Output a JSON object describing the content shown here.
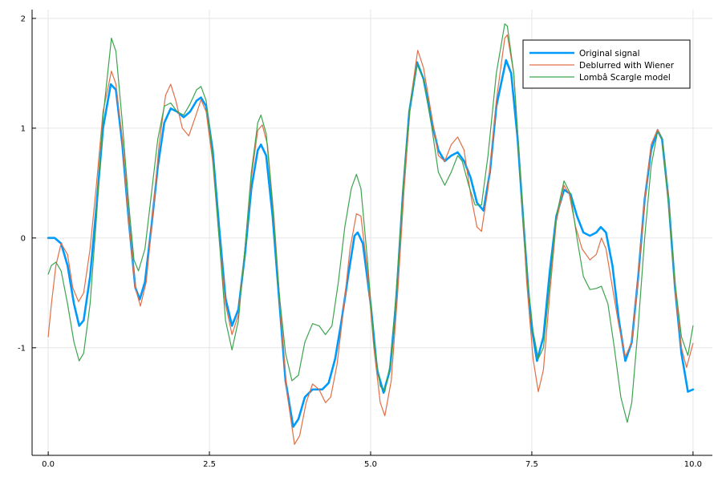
{
  "chart_data": {
    "type": "line",
    "xlim": [
      -0.25,
      10.3
    ],
    "ylim": [
      -1.98,
      2.08
    ],
    "grid": true,
    "legend_position": "top-right",
    "x_ticks": [
      {
        "value": 0,
        "label": "0.0"
      },
      {
        "value": 2.5,
        "label": "2.5"
      },
      {
        "value": 5,
        "label": "5.0"
      },
      {
        "value": 7.5,
        "label": "7.5"
      },
      {
        "value": 10,
        "label": "10.0"
      }
    ],
    "y_ticks": [
      {
        "value": -1,
        "label": "-1"
      },
      {
        "value": 0,
        "label": "0"
      },
      {
        "value": 1,
        "label": "1"
      },
      {
        "value": 2,
        "label": "2"
      }
    ],
    "series": [
      {
        "name": "Original signal",
        "color": "#009AFA",
        "points": [
          [
            0,
            0
          ],
          [
            0.1,
            0
          ],
          [
            0.2,
            -0.05
          ],
          [
            0.3,
            -0.25
          ],
          [
            0.4,
            -0.6
          ],
          [
            0.48,
            -0.8
          ],
          [
            0.55,
            -0.75
          ],
          [
            0.65,
            -0.35
          ],
          [
            0.75,
            0.3
          ],
          [
            0.85,
            1.0
          ],
          [
            0.97,
            1.4
          ],
          [
            1.05,
            1.35
          ],
          [
            1.15,
            0.85
          ],
          [
            1.25,
            0.15
          ],
          [
            1.35,
            -0.45
          ],
          [
            1.42,
            -0.56
          ],
          [
            1.5,
            -0.4
          ],
          [
            1.6,
            0.1
          ],
          [
            1.7,
            0.65
          ],
          [
            1.8,
            1.05
          ],
          [
            1.9,
            1.18
          ],
          [
            2.0,
            1.15
          ],
          [
            2.1,
            1.1
          ],
          [
            2.2,
            1.15
          ],
          [
            2.3,
            1.25
          ],
          [
            2.37,
            1.28
          ],
          [
            2.45,
            1.2
          ],
          [
            2.55,
            0.8
          ],
          [
            2.65,
            0.1
          ],
          [
            2.75,
            -0.55
          ],
          [
            2.85,
            -0.8
          ],
          [
            2.95,
            -0.65
          ],
          [
            3.05,
            -0.15
          ],
          [
            3.15,
            0.45
          ],
          [
            3.25,
            0.8
          ],
          [
            3.3,
            0.85
          ],
          [
            3.38,
            0.75
          ],
          [
            3.48,
            0.2
          ],
          [
            3.58,
            -0.55
          ],
          [
            3.68,
            -1.3
          ],
          [
            3.8,
            -1.72
          ],
          [
            3.88,
            -1.65
          ],
          [
            3.98,
            -1.45
          ],
          [
            4.1,
            -1.38
          ],
          [
            4.25,
            -1.38
          ],
          [
            4.35,
            -1.32
          ],
          [
            4.45,
            -1.1
          ],
          [
            4.55,
            -0.75
          ],
          [
            4.65,
            -0.35
          ],
          [
            4.75,
            0.02
          ],
          [
            4.8,
            0.05
          ],
          [
            4.88,
            -0.05
          ],
          [
            5.0,
            -0.6
          ],
          [
            5.1,
            -1.2
          ],
          [
            5.2,
            -1.41
          ],
          [
            5.3,
            -1.2
          ],
          [
            5.4,
            -0.55
          ],
          [
            5.5,
            0.4
          ],
          [
            5.6,
            1.15
          ],
          [
            5.72,
            1.6
          ],
          [
            5.82,
            1.45
          ],
          [
            5.95,
            1.05
          ],
          [
            6.05,
            0.8
          ],
          [
            6.15,
            0.7
          ],
          [
            6.25,
            0.75
          ],
          [
            6.35,
            0.78
          ],
          [
            6.45,
            0.7
          ],
          [
            6.55,
            0.55
          ],
          [
            6.65,
            0.32
          ],
          [
            6.75,
            0.25
          ],
          [
            6.85,
            0.6
          ],
          [
            6.95,
            1.2
          ],
          [
            7.1,
            1.62
          ],
          [
            7.18,
            1.5
          ],
          [
            7.28,
            0.9
          ],
          [
            7.38,
            0.05
          ],
          [
            7.48,
            -0.75
          ],
          [
            7.58,
            -1.12
          ],
          [
            7.68,
            -0.9
          ],
          [
            7.78,
            -0.3
          ],
          [
            7.88,
            0.2
          ],
          [
            8.0,
            0.44
          ],
          [
            8.1,
            0.4
          ],
          [
            8.2,
            0.2
          ],
          [
            8.3,
            0.05
          ],
          [
            8.4,
            0.02
          ],
          [
            8.5,
            0.05
          ],
          [
            8.57,
            0.1
          ],
          [
            8.65,
            0.05
          ],
          [
            8.75,
            -0.25
          ],
          [
            8.85,
            -0.75
          ],
          [
            8.95,
            -1.12
          ],
          [
            9.05,
            -0.95
          ],
          [
            9.15,
            -0.35
          ],
          [
            9.25,
            0.35
          ],
          [
            9.35,
            0.8
          ],
          [
            9.45,
            0.98
          ],
          [
            9.52,
            0.9
          ],
          [
            9.62,
            0.35
          ],
          [
            9.72,
            -0.45
          ],
          [
            9.82,
            -1.05
          ],
          [
            9.92,
            -1.4
          ],
          [
            10.0,
            -1.38
          ]
        ]
      },
      {
        "name": "Deblurred with Wiener",
        "color": "#E26F46",
        "points": [
          [
            0,
            -0.9
          ],
          [
            0.05,
            -0.6
          ],
          [
            0.12,
            -0.25
          ],
          [
            0.2,
            -0.05
          ],
          [
            0.3,
            -0.15
          ],
          [
            0.38,
            -0.45
          ],
          [
            0.47,
            -0.58
          ],
          [
            0.55,
            -0.5
          ],
          [
            0.65,
            -0.1
          ],
          [
            0.75,
            0.5
          ],
          [
            0.85,
            1.15
          ],
          [
            0.98,
            1.52
          ],
          [
            1.05,
            1.4
          ],
          [
            1.15,
            0.9
          ],
          [
            1.25,
            0.15
          ],
          [
            1.35,
            -0.45
          ],
          [
            1.43,
            -0.62
          ],
          [
            1.52,
            -0.4
          ],
          [
            1.62,
            0.2
          ],
          [
            1.72,
            0.85
          ],
          [
            1.82,
            1.3
          ],
          [
            1.9,
            1.4
          ],
          [
            1.98,
            1.25
          ],
          [
            2.08,
            1.0
          ],
          [
            2.18,
            0.93
          ],
          [
            2.28,
            1.1
          ],
          [
            2.37,
            1.26
          ],
          [
            2.45,
            1.15
          ],
          [
            2.55,
            0.7
          ],
          [
            2.65,
            0.0
          ],
          [
            2.75,
            -0.6
          ],
          [
            2.85,
            -0.88
          ],
          [
            2.95,
            -0.7
          ],
          [
            3.05,
            -0.1
          ],
          [
            3.15,
            0.55
          ],
          [
            3.25,
            0.98
          ],
          [
            3.32,
            1.03
          ],
          [
            3.4,
            0.85
          ],
          [
            3.5,
            0.2
          ],
          [
            3.6,
            -0.65
          ],
          [
            3.7,
            -1.4
          ],
          [
            3.82,
            -1.88
          ],
          [
            3.9,
            -1.8
          ],
          [
            4.0,
            -1.5
          ],
          [
            4.1,
            -1.33
          ],
          [
            4.2,
            -1.38
          ],
          [
            4.3,
            -1.5
          ],
          [
            4.38,
            -1.45
          ],
          [
            4.48,
            -1.15
          ],
          [
            4.58,
            -0.65
          ],
          [
            4.68,
            -0.1
          ],
          [
            4.78,
            0.22
          ],
          [
            4.85,
            0.2
          ],
          [
            4.95,
            -0.3
          ],
          [
            5.05,
            -1.0
          ],
          [
            5.15,
            -1.5
          ],
          [
            5.22,
            -1.62
          ],
          [
            5.32,
            -1.3
          ],
          [
            5.42,
            -0.5
          ],
          [
            5.52,
            0.45
          ],
          [
            5.62,
            1.25
          ],
          [
            5.73,
            1.71
          ],
          [
            5.82,
            1.55
          ],
          [
            5.95,
            1.1
          ],
          [
            6.05,
            0.75
          ],
          [
            6.15,
            0.7
          ],
          [
            6.25,
            0.85
          ],
          [
            6.35,
            0.92
          ],
          [
            6.45,
            0.8
          ],
          [
            6.55,
            0.4
          ],
          [
            6.65,
            0.1
          ],
          [
            6.72,
            0.06
          ],
          [
            6.82,
            0.45
          ],
          [
            6.95,
            1.25
          ],
          [
            7.08,
            1.82
          ],
          [
            7.12,
            1.85
          ],
          [
            7.22,
            1.5
          ],
          [
            7.32,
            0.6
          ],
          [
            7.42,
            -0.4
          ],
          [
            7.52,
            -1.1
          ],
          [
            7.6,
            -1.4
          ],
          [
            7.68,
            -1.2
          ],
          [
            7.78,
            -0.5
          ],
          [
            7.88,
            0.15
          ],
          [
            8.0,
            0.48
          ],
          [
            8.08,
            0.4
          ],
          [
            8.18,
            0.1
          ],
          [
            8.28,
            -0.1
          ],
          [
            8.4,
            -0.2
          ],
          [
            8.5,
            -0.15
          ],
          [
            8.58,
            0.0
          ],
          [
            8.65,
            -0.1
          ],
          [
            8.75,
            -0.45
          ],
          [
            8.85,
            -0.8
          ],
          [
            8.95,
            -1.08
          ],
          [
            9.05,
            -0.95
          ],
          [
            9.15,
            -0.35
          ],
          [
            9.25,
            0.35
          ],
          [
            9.35,
            0.85
          ],
          [
            9.45,
            0.99
          ],
          [
            9.52,
            0.9
          ],
          [
            9.62,
            0.35
          ],
          [
            9.72,
            -0.45
          ],
          [
            9.82,
            -1.0
          ],
          [
            9.9,
            -1.18
          ],
          [
            10.0,
            -0.96
          ]
        ]
      },
      {
        "name": "Lombâ  Scargle model",
        "color": "#3DA44E",
        "points": [
          [
            0,
            -0.33
          ],
          [
            0.05,
            -0.25
          ],
          [
            0.12,
            -0.22
          ],
          [
            0.2,
            -0.3
          ],
          [
            0.3,
            -0.6
          ],
          [
            0.4,
            -0.95
          ],
          [
            0.48,
            -1.12
          ],
          [
            0.55,
            -1.05
          ],
          [
            0.65,
            -0.6
          ],
          [
            0.75,
            0.2
          ],
          [
            0.85,
            1.1
          ],
          [
            0.98,
            1.82
          ],
          [
            1.05,
            1.7
          ],
          [
            1.15,
            1.05
          ],
          [
            1.25,
            0.3
          ],
          [
            1.33,
            -0.2
          ],
          [
            1.4,
            -0.3
          ],
          [
            1.5,
            -0.1
          ],
          [
            1.6,
            0.4
          ],
          [
            1.7,
            0.9
          ],
          [
            1.8,
            1.2
          ],
          [
            1.9,
            1.23
          ],
          [
            2.0,
            1.15
          ],
          [
            2.1,
            1.12
          ],
          [
            2.2,
            1.22
          ],
          [
            2.3,
            1.35
          ],
          [
            2.37,
            1.38
          ],
          [
            2.45,
            1.25
          ],
          [
            2.55,
            0.75
          ],
          [
            2.65,
            0.0
          ],
          [
            2.75,
            -0.75
          ],
          [
            2.85,
            -1.02
          ],
          [
            2.95,
            -0.75
          ],
          [
            3.05,
            -0.1
          ],
          [
            3.15,
            0.6
          ],
          [
            3.25,
            1.05
          ],
          [
            3.3,
            1.12
          ],
          [
            3.38,
            0.95
          ],
          [
            3.48,
            0.3
          ],
          [
            3.58,
            -0.5
          ],
          [
            3.68,
            -1.05
          ],
          [
            3.78,
            -1.3
          ],
          [
            3.88,
            -1.25
          ],
          [
            3.98,
            -0.95
          ],
          [
            4.1,
            -0.78
          ],
          [
            4.2,
            -0.8
          ],
          [
            4.3,
            -0.88
          ],
          [
            4.4,
            -0.8
          ],
          [
            4.5,
            -0.4
          ],
          [
            4.6,
            0.1
          ],
          [
            4.7,
            0.45
          ],
          [
            4.78,
            0.58
          ],
          [
            4.85,
            0.45
          ],
          [
            4.95,
            -0.2
          ],
          [
            5.05,
            -0.95
          ],
          [
            5.15,
            -1.35
          ],
          [
            5.22,
            -1.4
          ],
          [
            5.32,
            -1.1
          ],
          [
            5.42,
            -0.3
          ],
          [
            5.52,
            0.6
          ],
          [
            5.62,
            1.25
          ],
          [
            5.72,
            1.58
          ],
          [
            5.82,
            1.45
          ],
          [
            5.95,
            1.0
          ],
          [
            6.05,
            0.6
          ],
          [
            6.15,
            0.48
          ],
          [
            6.25,
            0.6
          ],
          [
            6.35,
            0.75
          ],
          [
            6.42,
            0.7
          ],
          [
            6.52,
            0.48
          ],
          [
            6.62,
            0.3
          ],
          [
            6.72,
            0.3
          ],
          [
            6.82,
            0.75
          ],
          [
            6.95,
            1.5
          ],
          [
            7.08,
            1.95
          ],
          [
            7.12,
            1.93
          ],
          [
            7.22,
            1.5
          ],
          [
            7.32,
            0.6
          ],
          [
            7.42,
            -0.3
          ],
          [
            7.52,
            -0.85
          ],
          [
            7.6,
            -1.1
          ],
          [
            7.68,
            -1.0
          ],
          [
            7.78,
            -0.4
          ],
          [
            7.88,
            0.2
          ],
          [
            8.0,
            0.52
          ],
          [
            8.1,
            0.4
          ],
          [
            8.2,
            0.0
          ],
          [
            8.3,
            -0.35
          ],
          [
            8.4,
            -0.47
          ],
          [
            8.5,
            -0.46
          ],
          [
            8.58,
            -0.44
          ],
          [
            8.68,
            -0.6
          ],
          [
            8.78,
            -1.0
          ],
          [
            8.88,
            -1.45
          ],
          [
            8.98,
            -1.68
          ],
          [
            9.05,
            -1.5
          ],
          [
            9.15,
            -0.8
          ],
          [
            9.25,
            0.0
          ],
          [
            9.35,
            0.65
          ],
          [
            9.45,
            0.97
          ],
          [
            9.52,
            0.9
          ],
          [
            9.62,
            0.3
          ],
          [
            9.72,
            -0.4
          ],
          [
            9.82,
            -0.9
          ],
          [
            9.92,
            -1.07
          ],
          [
            10.0,
            -0.8
          ]
        ]
      }
    ]
  }
}
